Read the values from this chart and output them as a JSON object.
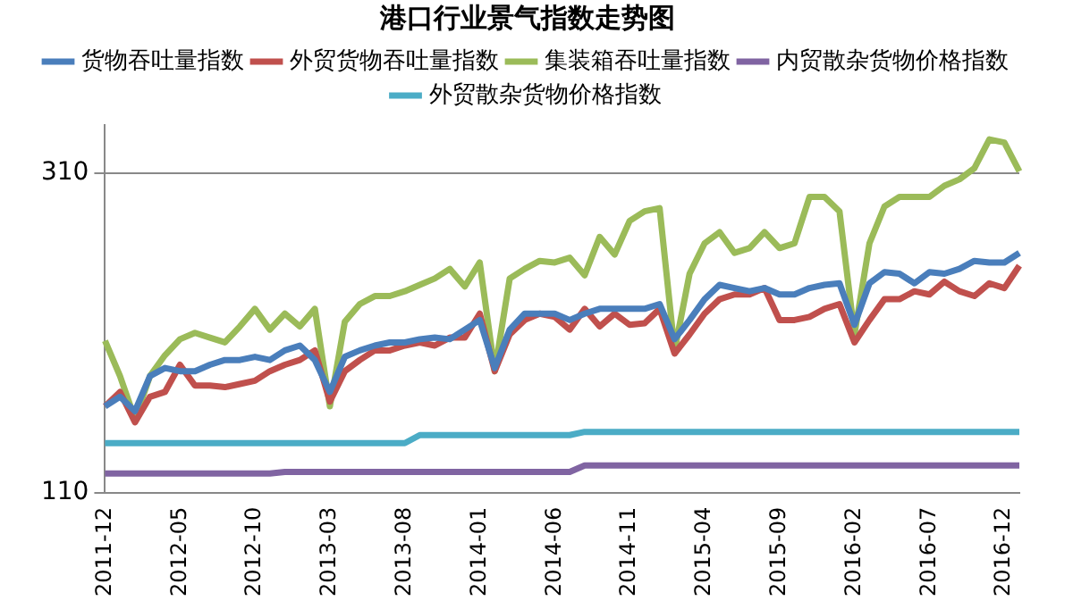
{
  "chart_data": {
    "type": "line",
    "title": "港口行业景气指数走势图",
    "categories": [
      "2011-12",
      null,
      null,
      null,
      null,
      "2012-05",
      null,
      null,
      null,
      null,
      "2012-10",
      null,
      null,
      null,
      null,
      "2013-03",
      null,
      null,
      null,
      null,
      "2013-08",
      null,
      null,
      null,
      null,
      "2014-01",
      null,
      null,
      null,
      null,
      "2014-06",
      null,
      null,
      null,
      null,
      "2014-11",
      null,
      null,
      null,
      null,
      "2015-04",
      null,
      null,
      null,
      null,
      "2015-09",
      null,
      null,
      null,
      null,
      "2016-02",
      null,
      null,
      null,
      null,
      "2016-07",
      null,
      null,
      null,
      null,
      "2016-12",
      null
    ],
    "series": [
      {
        "name": "货物吞吐量指数",
        "color": "#4a7ebb",
        "values": [
          164,
          170,
          161,
          183,
          188,
          186,
          186,
          190,
          193,
          193,
          195,
          193,
          199,
          202,
          193,
          173,
          195,
          199,
          202,
          204,
          204,
          206,
          207,
          206,
          212,
          218,
          188,
          212,
          222,
          222,
          222,
          218,
          222,
          225,
          225,
          225,
          225,
          228,
          206,
          218,
          231,
          240,
          238,
          236,
          238,
          234,
          234,
          238,
          240,
          241,
          215,
          241,
          248,
          247,
          241,
          248,
          247,
          250,
          255,
          254,
          254,
          260
        ]
      },
      {
        "name": "外贸货物吞吐量指数",
        "color": "#c0504d",
        "values": [
          164,
          173,
          154,
          170,
          173,
          190,
          177,
          177,
          176,
          178,
          180,
          186,
          190,
          193,
          199,
          167,
          186,
          193,
          199,
          199,
          202,
          204,
          202,
          207,
          207,
          222,
          186,
          209,
          218,
          222,
          220,
          212,
          225,
          214,
          222,
          215,
          216,
          225,
          197,
          209,
          222,
          231,
          234,
          234,
          238,
          218,
          218,
          220,
          225,
          228,
          204,
          218,
          231,
          231,
          236,
          234,
          242,
          236,
          233,
          241,
          238,
          252
        ]
      },
      {
        "name": "集装箱吞吐量指数",
        "color": "#9bbb59",
        "values": [
          205,
          183,
          156,
          183,
          196,
          206,
          210,
          207,
          204,
          214,
          225,
          212,
          222,
          214,
          225,
          164,
          217,
          228,
          233,
          233,
          236,
          240,
          244,
          250,
          239,
          254,
          186,
          244,
          250,
          255,
          254,
          257,
          246,
          270,
          259,
          280,
          286,
          288,
          199,
          247,
          266,
          273,
          260,
          263,
          273,
          263,
          266,
          295,
          295,
          286,
          209,
          266,
          289,
          295,
          295,
          295,
          302,
          306,
          313,
          331,
          329,
          311
        ]
      },
      {
        "name": "内贸散杂货物价格指数",
        "color": "#8064a2",
        "values": [
          122,
          122,
          122,
          122,
          122,
          122,
          122,
          122,
          122,
          122,
          122,
          122,
          123,
          123,
          123,
          123,
          123,
          123,
          123,
          123,
          123,
          123,
          123,
          123,
          123,
          123,
          123,
          123,
          123,
          123,
          123,
          123,
          127,
          127,
          127,
          127,
          127,
          127,
          127,
          127,
          127,
          127,
          127,
          127,
          127,
          127,
          127,
          127,
          127,
          127,
          127,
          127,
          127,
          127,
          127,
          127,
          127,
          127,
          127,
          127,
          127,
          127
        ]
      },
      {
        "name": "外贸散杂货物价格指数",
        "color": "#4bacc6",
        "values": [
          141,
          141,
          141,
          141,
          141,
          141,
          141,
          141,
          141,
          141,
          141,
          141,
          141,
          141,
          141,
          141,
          141,
          141,
          141,
          141,
          141,
          146,
          146,
          146,
          146,
          146,
          146,
          146,
          146,
          146,
          146,
          146,
          148,
          148,
          148,
          148,
          148,
          148,
          148,
          148,
          148,
          148,
          148,
          148,
          148,
          148,
          148,
          148,
          148,
          148,
          148,
          148,
          148,
          148,
          148,
          148,
          148,
          148,
          148,
          148,
          148,
          148
        ]
      }
    ],
    "ylim": [
      110,
      340
    ],
    "yticks": [
      110,
      310
    ],
    "grid": "y",
    "legend": "top",
    "marker": "none"
  }
}
